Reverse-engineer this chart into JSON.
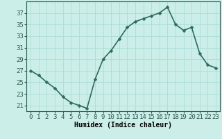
{
  "x": [
    0,
    1,
    2,
    3,
    4,
    5,
    6,
    7,
    8,
    9,
    10,
    11,
    12,
    13,
    14,
    15,
    16,
    17,
    18,
    19,
    20,
    21,
    22,
    23
  ],
  "y": [
    27,
    26.2,
    25,
    24,
    22.5,
    21.5,
    21,
    20.5,
    25.5,
    29,
    30.5,
    32.5,
    34.5,
    35.5,
    36,
    36.5,
    37,
    38,
    35,
    34,
    34.5,
    30,
    28,
    27.5
  ],
  "line_color": "#2d6b5e",
  "marker_color": "#2d6b5e",
  "bg_color": "#cceee8",
  "grid_color": "#aaddda",
  "xlabel": "Humidex (Indice chaleur)",
  "yticks": [
    21,
    23,
    25,
    27,
    29,
    31,
    33,
    35,
    37
  ],
  "xticks": [
    0,
    1,
    2,
    3,
    4,
    5,
    6,
    7,
    8,
    9,
    10,
    11,
    12,
    13,
    14,
    15,
    16,
    17,
    18,
    19,
    20,
    21,
    22,
    23
  ],
  "ylim": [
    20.0,
    39.0
  ],
  "xlim": [
    -0.5,
    23.5
  ],
  "xlabel_fontsize": 7,
  "tick_fontsize": 6.5,
  "linewidth": 1.2,
  "markersize": 2.5
}
